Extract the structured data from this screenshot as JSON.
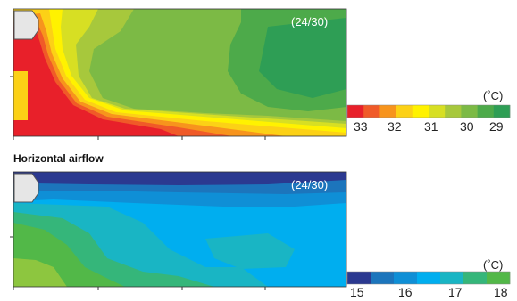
{
  "section_title": "Horizontal airflow",
  "chart_data": [
    {
      "type": "heatmap",
      "panel_label": "(24/30)",
      "legend_unit": "(˚C)",
      "legend_ticks": [
        "33",
        "32",
        "31",
        "30",
        "29"
      ],
      "levels": [
        33.5,
        33,
        32.5,
        32,
        31.5,
        31,
        30.5,
        30,
        29.5,
        29
      ],
      "colors": [
        "#e8202a",
        "#f05a28",
        "#f7941d",
        "#fcd116",
        "#fff200",
        "#d7df23",
        "#a7c83c",
        "#7cba45",
        "#4daa4a",
        "#2e9e55"
      ]
    },
    {
      "type": "heatmap",
      "panel_label": "(24/30)",
      "legend_unit": "(˚C)",
      "legend_ticks": [
        "15",
        "16",
        "17",
        "18"
      ],
      "levels": [
        15,
        15.5,
        16,
        16.5,
        17,
        17.5,
        18
      ],
      "colors": [
        "#2b3990",
        "#1c75bc",
        "#0f8fd6",
        "#00aeef",
        "#19b5c4",
        "#35b67a",
        "#52b848"
      ]
    }
  ]
}
